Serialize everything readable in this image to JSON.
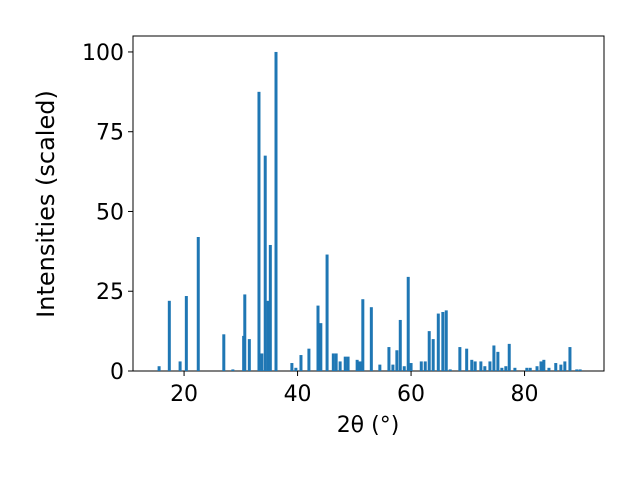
{
  "chart_data": {
    "type": "bar",
    "color": "#1f77b4",
    "x_label": "2θ (°)",
    "y_label": "Intensities (scaled)",
    "x": [
      15.6,
      17.4,
      19.3,
      20.4,
      22.5,
      27.0,
      28.6,
      30.5,
      30.7,
      31.5,
      33.2,
      33.7,
      34.3,
      34.8,
      35.2,
      36.2,
      39.0,
      39.7,
      40.6,
      42.0,
      43.6,
      44.1,
      45.2,
      46.3,
      46.8,
      47.5,
      48.4,
      48.9,
      50.5,
      51.0,
      51.5,
      53.0,
      54.5,
      56.1,
      56.8,
      57.5,
      58.1,
      58.8,
      59.5,
      60.0,
      61.8,
      62.5,
      63.2,
      63.9,
      64.8,
      65.6,
      66.2,
      66.9,
      68.6,
      69.8,
      70.7,
      71.3,
      72.3,
      73.0,
      73.9,
      74.6,
      75.3,
      76.0,
      76.7,
      77.3,
      78.3,
      80.4,
      81.0,
      82.2,
      82.9,
      83.4,
      84.3,
      85.5,
      86.4,
      87.1,
      88.0,
      89.2,
      89.8
    ],
    "values": [
      1.5,
      22,
      3,
      23.5,
      42,
      11.5,
      0.5,
      11,
      24,
      10,
      87.5,
      5.5,
      67.5,
      22,
      39.5,
      100,
      2.5,
      1,
      5,
      7,
      20.5,
      15,
      36.5,
      5.5,
      5.5,
      3,
      4.5,
      4.5,
      3.5,
      3,
      22.5,
      20,
      2,
      7.5,
      2,
      6.5,
      16,
      1.5,
      29.5,
      2.5,
      3,
      3,
      12.5,
      10,
      18,
      18.5,
      19,
      0.5,
      7.5,
      7,
      3.5,
      3,
      3,
      1.5,
      3,
      8,
      6,
      1,
      1.5,
      8.5,
      1,
      1,
      1,
      1.5,
      3,
      3.5,
      1,
      2.5,
      2,
      3,
      7.5,
      0.5,
      0.5
    ],
    "xlim": [
      11,
      94
    ],
    "ylim": [
      0,
      105
    ],
    "xticks": [
      20,
      40,
      60,
      80
    ],
    "yticks": [
      0,
      25,
      50,
      75,
      100
    ]
  }
}
